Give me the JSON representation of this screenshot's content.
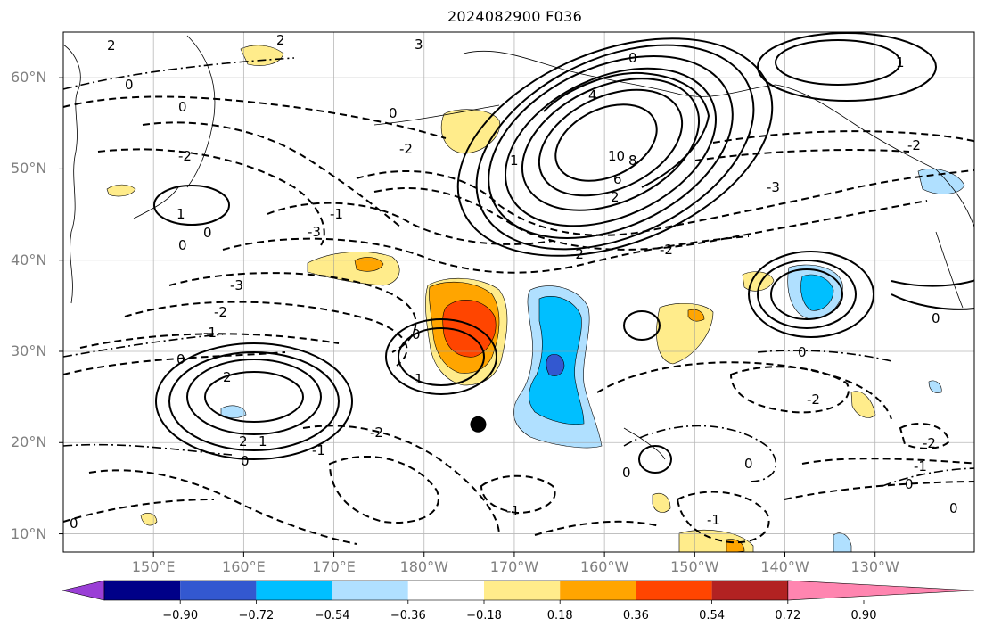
{
  "title": "2024082900 F036",
  "lat_labels": [
    {
      "text": "60°N",
      "lat": 60
    },
    {
      "text": "50°N",
      "lat": 50
    },
    {
      "text": "40°N",
      "lat": 40
    },
    {
      "text": "30°N",
      "lat": 30
    },
    {
      "text": "20°N",
      "lat": 20
    },
    {
      "text": "10°N",
      "lat": 10
    }
  ],
  "lon_labels": [
    {
      "text": "150°E",
      "lon": 150
    },
    {
      "text": "160°E",
      "lon": 160
    },
    {
      "text": "170°E",
      "lon": 170
    },
    {
      "text": "180°W",
      "lon": 180
    },
    {
      "text": "170°W",
      "lon": 190
    },
    {
      "text": "160°W",
      "lon": 200
    },
    {
      "text": "150°W",
      "lon": 210
    },
    {
      "text": "140°W",
      "lon": 220
    },
    {
      "text": "130°W",
      "lon": 230
    }
  ],
  "extent": {
    "lon_min": 140,
    "lon_max": 241,
    "lat_min": 8,
    "lat_max": 65
  },
  "colorbar": {
    "colors": [
      "#9a3fd6",
      "#000088",
      "#3358d0",
      "#00bfff",
      "#b0e0ff",
      "#ffffff",
      "#ffec8b",
      "#ffa500",
      "#ff4500",
      "#b22222",
      "#ff85b0"
    ],
    "tick_labels": [
      "−0.90",
      "−0.72",
      "−0.54",
      "−0.36",
      "−0.18",
      "0.18",
      "0.36",
      "0.54",
      "0.72",
      "0.90"
    ]
  },
  "contour_labels": [
    "2",
    "0",
    "-2",
    "1",
    "-3",
    "4",
    "6",
    "8",
    "10",
    "-1",
    "3"
  ],
  "marker": {
    "lon": 186,
    "lat": 22
  }
}
